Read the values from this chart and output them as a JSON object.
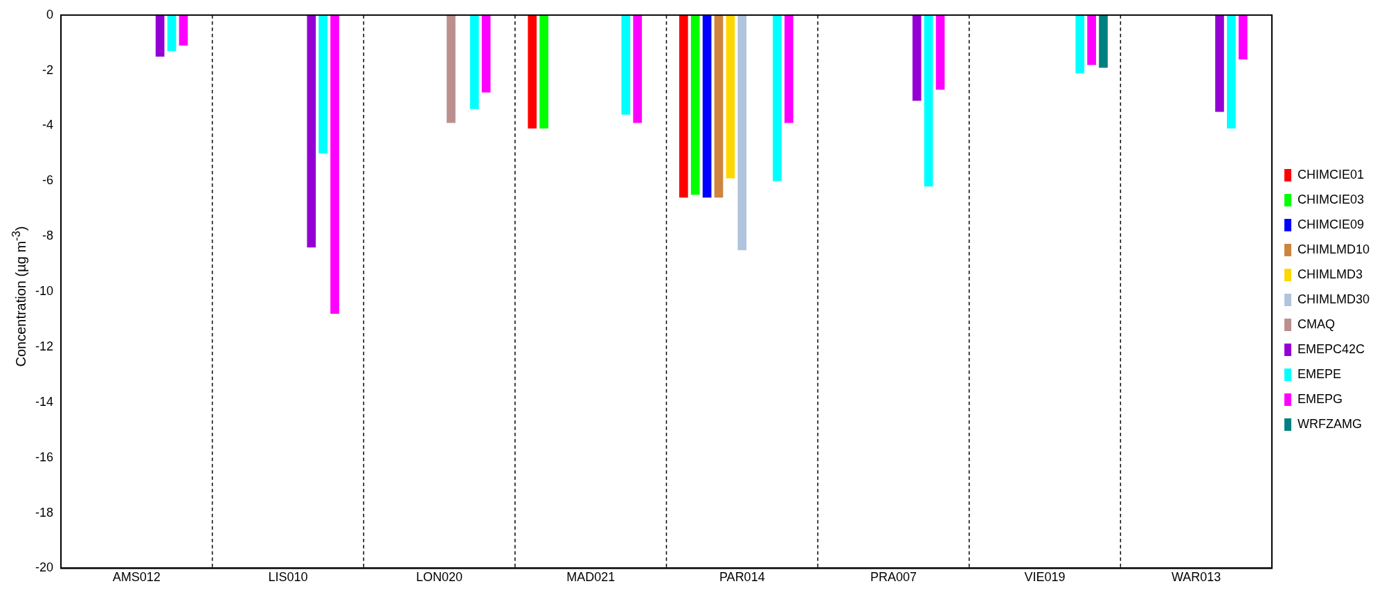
{
  "chart_data": {
    "type": "bar",
    "ylabel": "Concentration (µg m$^{-3}$)",
    "categories": [
      "AMS012",
      "LIS010",
      "LON020",
      "MAD021",
      "PAR014",
      "PRA007",
      "VIE019",
      "WAR013"
    ],
    "series": [
      {
        "name": "CHIMCIE01",
        "color": "#ff0000",
        "values": [
          null,
          null,
          null,
          -4.1,
          -6.6,
          null,
          null,
          null
        ]
      },
      {
        "name": "CHIMCIE03",
        "color": "#00ff00",
        "values": [
          null,
          null,
          null,
          -4.1,
          -6.5,
          null,
          null,
          null
        ]
      },
      {
        "name": "CHIMCIE09",
        "color": "#0000ff",
        "values": [
          null,
          null,
          null,
          null,
          -6.6,
          null,
          null,
          null
        ]
      },
      {
        "name": "CHIMLMD10",
        "color": "#cd853f",
        "values": [
          null,
          null,
          null,
          null,
          -6.6,
          null,
          null,
          null
        ]
      },
      {
        "name": "CHIMLMD3",
        "color": "#ffd700",
        "values": [
          null,
          null,
          null,
          null,
          -5.9,
          null,
          null,
          null
        ]
      },
      {
        "name": "CHIMLMD30",
        "color": "#b0c4de",
        "values": [
          null,
          null,
          null,
          null,
          -8.5,
          null,
          null,
          null
        ]
      },
      {
        "name": "CMAQ",
        "color": "#bc8f8f",
        "values": [
          null,
          null,
          -3.9,
          null,
          null,
          null,
          null,
          null
        ]
      },
      {
        "name": "EMEPC42C",
        "color": "#9400d3",
        "values": [
          -1.5,
          -8.4,
          null,
          null,
          null,
          -3.1,
          null,
          -3.5
        ]
      },
      {
        "name": "EMEPE",
        "color": "#00ffff",
        "values": [
          -1.3,
          -5.0,
          -3.4,
          -3.6,
          -6.0,
          -6.2,
          -2.1,
          -4.1
        ]
      },
      {
        "name": "EMEPG",
        "color": "#ff00ff",
        "values": [
          -1.1,
          -10.8,
          -2.8,
          -3.9,
          -3.9,
          -2.7,
          -1.8,
          -1.6
        ]
      },
      {
        "name": "WRFZAMG",
        "color": "#008080",
        "values": [
          null,
          null,
          null,
          null,
          null,
          null,
          -1.9,
          null
        ]
      }
    ],
    "ylim": [
      -20,
      0
    ],
    "yticks": [
      -20,
      -18,
      -16,
      -14,
      -12,
      -10,
      -8,
      -6,
      -4,
      -2,
      0
    ],
    "grid": "x",
    "legend": "right"
  }
}
